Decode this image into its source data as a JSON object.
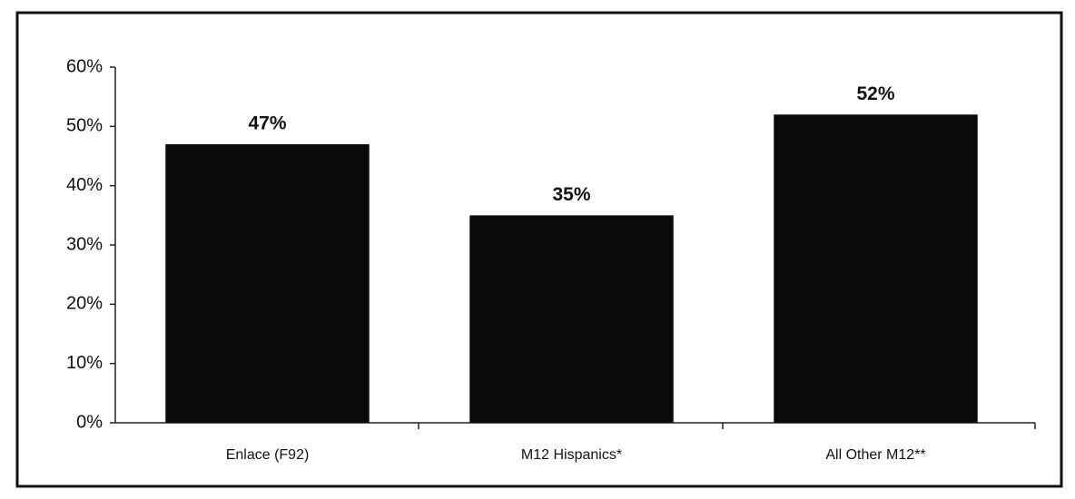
{
  "chart_data": {
    "type": "bar",
    "categories": [
      "Enlace (F92)",
      "M12 Hispanics*",
      "All Other M12**"
    ],
    "values": [
      47,
      35,
      52
    ],
    "value_labels": [
      "47%",
      "35%",
      "52%"
    ],
    "color": "#0a0a0a",
    "ylim": [
      0,
      60
    ],
    "yticks": [
      {
        "value": 0,
        "label": "0%"
      },
      {
        "value": 10,
        "label": "10%"
      },
      {
        "value": 20,
        "label": "20%"
      },
      {
        "value": 30,
        "label": "30%"
      },
      {
        "value": 40,
        "label": "40%"
      },
      {
        "value": 50,
        "label": "50%"
      },
      {
        "value": 60,
        "label": "60%"
      }
    ],
    "grid": false
  }
}
